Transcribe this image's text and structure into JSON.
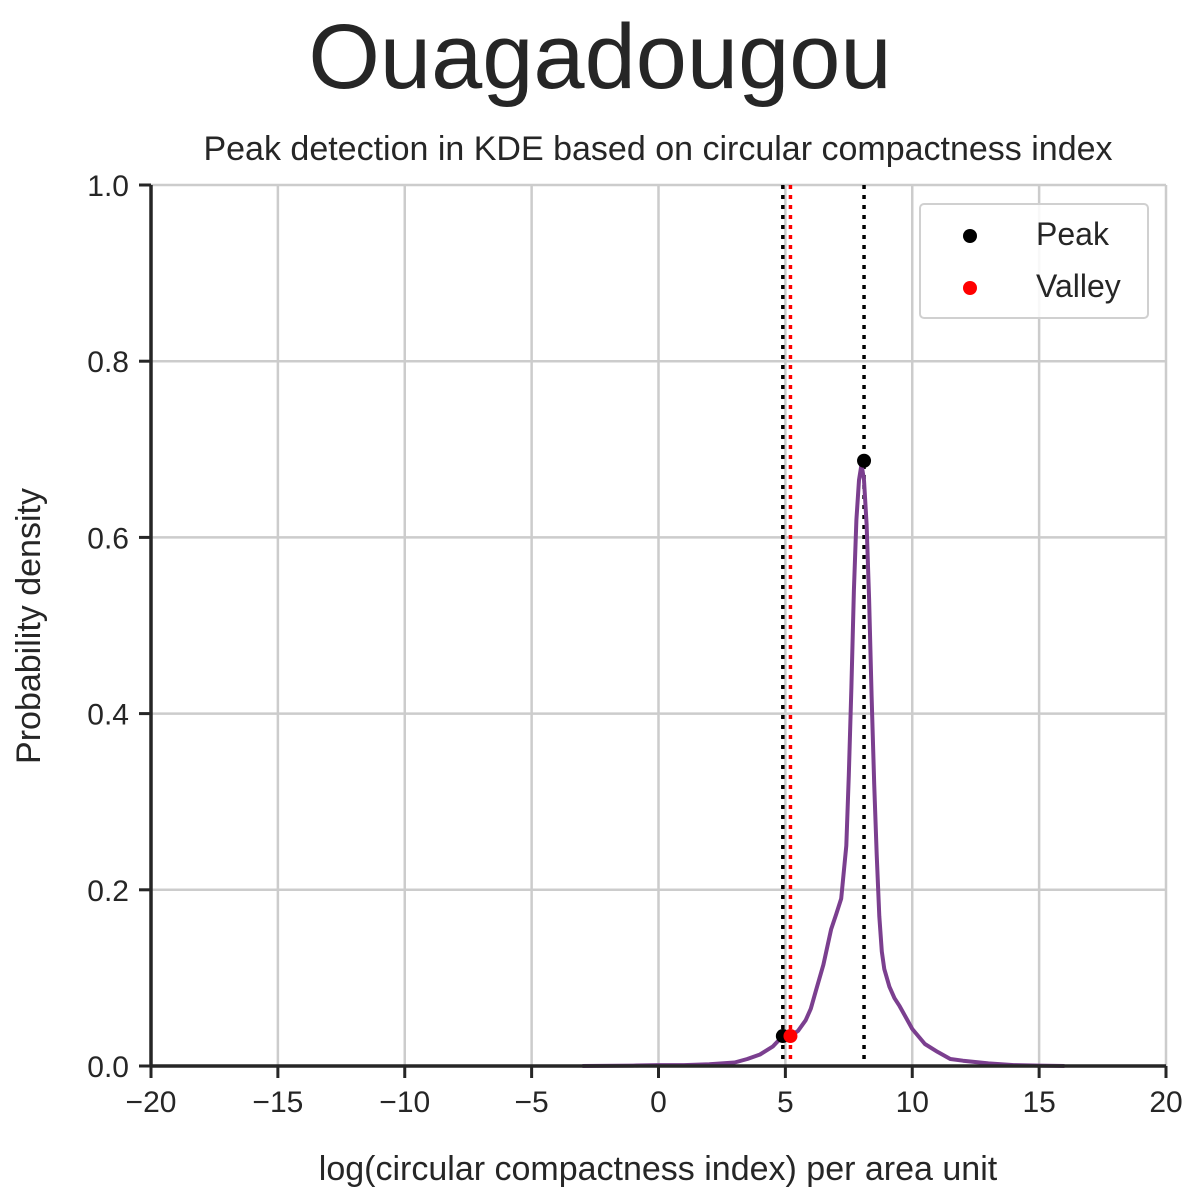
{
  "chart_data": {
    "type": "line",
    "suptitle": "Ouagadougou",
    "title": "Peak detection in KDE based on circular compactness index",
    "xlabel": "log(circular compactness index) per area unit",
    "ylabel": "Probability density",
    "xlim": [
      -20,
      20
    ],
    "ylim": [
      0,
      1
    ],
    "xticks": [
      -20,
      -15,
      -10,
      -5,
      0,
      5,
      10,
      15,
      20
    ],
    "xtick_labels": [
      "−20",
      "−15",
      "−10",
      "−5",
      "0",
      "5",
      "10",
      "15",
      "20"
    ],
    "yticks": [
      0,
      0.2,
      0.4,
      0.6,
      0.8,
      1.0
    ],
    "ytick_labels": [
      "0.0",
      "0.2",
      "0.4",
      "0.6",
      "0.8",
      "1.0"
    ],
    "grid": true,
    "legend": {
      "placement": "top-right",
      "entries": [
        {
          "label": "Peak",
          "color": "#000000"
        },
        {
          "label": "Valley",
          "color": "#ff0000"
        }
      ]
    },
    "kde_color": "#7b3f8f",
    "kde": {
      "x": [
        -3,
        -1,
        0,
        1,
        2,
        2.5,
        3,
        3.5,
        4,
        4.5,
        4.9,
        5.2,
        5.5,
        5.8,
        6,
        6.2,
        6.5,
        6.8,
        7,
        7.2,
        7.4,
        7.5,
        7.6,
        7.7,
        7.8,
        7.9,
        8.0,
        8.1,
        8.2,
        8.3,
        8.4,
        8.5,
        8.6,
        8.7,
        8.8,
        8.9,
        9.1,
        9.3,
        9.5,
        10,
        10.5,
        11,
        11.5,
        12,
        13,
        14,
        15,
        16
      ],
      "y": [
        0.0,
        0.0005,
        0.001,
        0.001,
        0.002,
        0.003,
        0.004,
        0.008,
        0.013,
        0.022,
        0.034,
        0.034,
        0.04,
        0.052,
        0.065,
        0.085,
        0.115,
        0.155,
        0.172,
        0.19,
        0.25,
        0.33,
        0.43,
        0.54,
        0.62,
        0.665,
        0.683,
        0.665,
        0.615,
        0.53,
        0.42,
        0.32,
        0.24,
        0.17,
        0.13,
        0.11,
        0.09,
        0.077,
        0.068,
        0.042,
        0.025,
        0.016,
        0.008,
        0.006,
        0.003,
        0.001,
        0.0005,
        0.0
      ]
    },
    "peaks": [
      {
        "x": 4.9,
        "y": 0.034
      },
      {
        "x": 8.1,
        "y": 0.687
      }
    ],
    "valleys": [
      {
        "x": 5.2,
        "y": 0.034
      }
    ]
  }
}
